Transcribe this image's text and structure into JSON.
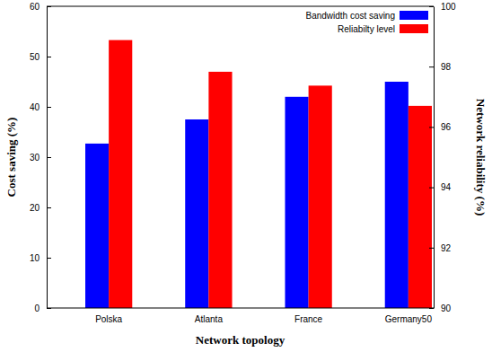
{
  "chart_data": {
    "type": "bar",
    "x_label": "Network topology",
    "y_label": "Cost saving (%)",
    "y2_label": "Network reliability (%)",
    "categories": [
      "Polska",
      "Atlanta",
      "France",
      "Germany50"
    ],
    "series": [
      {
        "name": "Bandwidth cost saving",
        "color": "#0000ff",
        "values": [
          32.7,
          37.5,
          42,
          45
        ]
      },
      {
        "name": "Reliabilty level",
        "color": "#ff0000",
        "axis": "y2",
        "values": [
          98.88,
          97.83,
          97.37,
          96.7
        ]
      }
    ],
    "ylim": [
      0,
      60
    ],
    "yticks": [
      0,
      10,
      20,
      30,
      40,
      50,
      60
    ],
    "y2lim": [
      90,
      100
    ],
    "y2ticks": [
      90,
      92,
      94,
      96,
      98,
      100
    ],
    "legend": "top-right"
  }
}
